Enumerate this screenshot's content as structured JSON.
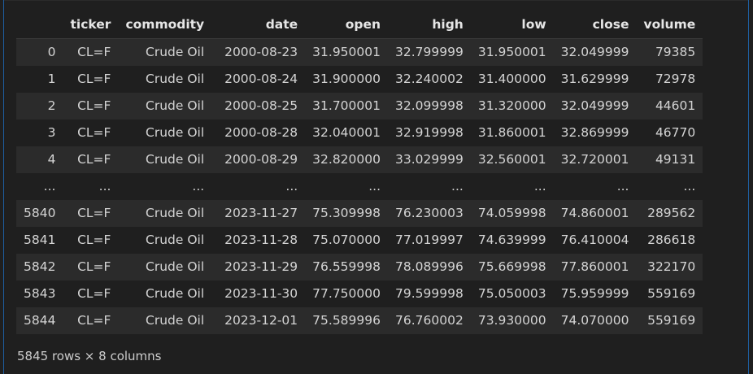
{
  "table": {
    "columns": [
      "",
      "ticker",
      "commodity",
      "date",
      "open",
      "high",
      "low",
      "close",
      "volume"
    ],
    "rows": [
      [
        "0",
        "CL=F",
        "Crude Oil",
        "2000-08-23",
        "31.950001",
        "32.799999",
        "31.950001",
        "32.049999",
        "79385"
      ],
      [
        "1",
        "CL=F",
        "Crude Oil",
        "2000-08-24",
        "31.900000",
        "32.240002",
        "31.400000",
        "31.629999",
        "72978"
      ],
      [
        "2",
        "CL=F",
        "Crude Oil",
        "2000-08-25",
        "31.700001",
        "32.099998",
        "31.320000",
        "32.049999",
        "44601"
      ],
      [
        "3",
        "CL=F",
        "Crude Oil",
        "2000-08-28",
        "32.040001",
        "32.919998",
        "31.860001",
        "32.869999",
        "46770"
      ],
      [
        "4",
        "CL=F",
        "Crude Oil",
        "2000-08-29",
        "32.820000",
        "33.029999",
        "32.560001",
        "32.720001",
        "49131"
      ],
      [
        "...",
        "...",
        "...",
        "...",
        "...",
        "...",
        "...",
        "...",
        "..."
      ],
      [
        "5840",
        "CL=F",
        "Crude Oil",
        "2023-11-27",
        "75.309998",
        "76.230003",
        "74.059998",
        "74.860001",
        "289562"
      ],
      [
        "5841",
        "CL=F",
        "Crude Oil",
        "2023-11-28",
        "75.070000",
        "77.019997",
        "74.639999",
        "76.410004",
        "286618"
      ],
      [
        "5842",
        "CL=F",
        "Crude Oil",
        "2023-11-29",
        "76.559998",
        "78.089996",
        "75.669998",
        "77.860001",
        "322170"
      ],
      [
        "5843",
        "CL=F",
        "Crude Oil",
        "2023-11-30",
        "77.750000",
        "79.599998",
        "75.050003",
        "75.959999",
        "559169"
      ],
      [
        "5844",
        "CL=F",
        "Crude Oil",
        "2023-12-01",
        "75.589996",
        "76.760002",
        "73.930000",
        "74.070000",
        "559169"
      ]
    ]
  },
  "summary": "5845 rows × 8 columns"
}
